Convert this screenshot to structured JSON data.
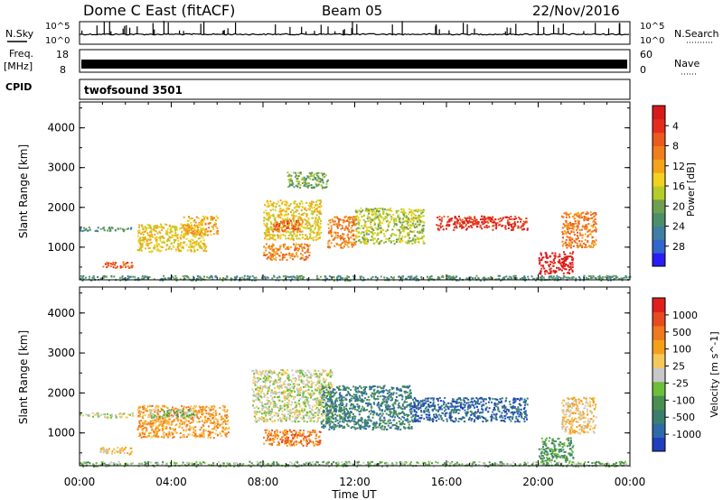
{
  "header": {
    "station": "Dome C East (fitACF)",
    "beam": "Beam 05",
    "date": "22/Nov/2016"
  },
  "sky_panel": {
    "left_label": "N.Sky",
    "left_ticks": [
      "10^5",
      "10^0"
    ],
    "right_label": "N.Search",
    "right_ticks": [
      "10^5",
      "10^0"
    ]
  },
  "freq_panel": {
    "left_label_1": "Freq.",
    "left_label_2": "[MHz]",
    "left_ticks": [
      "18",
      "8"
    ],
    "right_label": "Nave",
    "right_ticks": [
      "60",
      "0"
    ]
  },
  "cpid": {
    "label": "CPID",
    "value": "twofsound 3501"
  },
  "x_axis": {
    "title": "Time UT",
    "ticks": [
      "00:00",
      "04:00",
      "08:00",
      "12:00",
      "16:00",
      "20:00",
      "00:00"
    ]
  },
  "chart_data": [
    {
      "type": "heatmap",
      "title": "",
      "xlabel": "Time UT",
      "ylabel": "Slant Range [km]",
      "x_ticks": [
        "00:00",
        "04:00",
        "08:00",
        "12:00",
        "16:00",
        "20:00",
        "00:00"
      ],
      "y_ticks": [
        "1000",
        "2000",
        "3000",
        "4000"
      ],
      "x_range_hours": [
        0,
        24
      ],
      "y_range_km": [
        180,
        4650
      ],
      "colorbar": {
        "label": "Power [dB]",
        "ticks": [
          "4",
          "8",
          "12",
          "16",
          "20",
          "24",
          "28"
        ],
        "colors": [
          "#2a1cf5",
          "#3366cc",
          "#3f7fa6",
          "#4d8f6a",
          "#6fa050",
          "#b6cc2a",
          "#f2d21e",
          "#f5a31a",
          "#f07d1e",
          "#eb5a1e",
          "#e52d1e",
          "#d7191c"
        ]
      },
      "regions": [
        {
          "t0": 0.0,
          "t1": 2.3,
          "r0": 1420,
          "r1": 1520,
          "level": 3
        },
        {
          "t0": 0.8,
          "t1": 2.3,
          "r0": 500,
          "r1": 650,
          "level": 9
        },
        {
          "t0": 2.5,
          "t1": 5.5,
          "r0": 900,
          "r1": 1600,
          "level": 6
        },
        {
          "t0": 4.5,
          "t1": 6.0,
          "r0": 1300,
          "r1": 1800,
          "level": 7
        },
        {
          "t0": 8.0,
          "t1": 10.5,
          "r0": 1200,
          "r1": 2200,
          "level": 6
        },
        {
          "t0": 8.4,
          "t1": 9.6,
          "r0": 1400,
          "r1": 1700,
          "level": 9
        },
        {
          "t0": 8.0,
          "t1": 10.0,
          "r0": 700,
          "r1": 1100,
          "level": 8
        },
        {
          "t0": 9.0,
          "t1": 10.8,
          "r0": 2500,
          "r1": 2900,
          "level": 4
        },
        {
          "t0": 10.8,
          "t1": 12.0,
          "r0": 1000,
          "r1": 1800,
          "level": 8
        },
        {
          "t0": 12.0,
          "t1": 15.0,
          "r0": 1100,
          "r1": 2000,
          "level": 5
        },
        {
          "t0": 15.5,
          "t1": 19.5,
          "r0": 1450,
          "r1": 1800,
          "level": 10
        },
        {
          "t0": 20.0,
          "t1": 21.5,
          "r0": 350,
          "r1": 900,
          "level": 11
        },
        {
          "t0": 21.0,
          "t1": 22.5,
          "r0": 1000,
          "r1": 1900,
          "level": 8
        },
        {
          "t0": 0.0,
          "t1": 24.0,
          "r0": 180,
          "r1": 300,
          "level": 3
        }
      ]
    },
    {
      "type": "heatmap",
      "title": "",
      "xlabel": "Time UT",
      "ylabel": "Slant Range [km]",
      "x_ticks": [
        "00:00",
        "04:00",
        "08:00",
        "12:00",
        "16:00",
        "20:00",
        "00:00"
      ],
      "y_ticks": [
        "1000",
        "2000",
        "3000",
        "4000"
      ],
      "x_range_hours": [
        0,
        24
      ],
      "y_range_km": [
        180,
        4650
      ],
      "colorbar": {
        "label": "Velocity [m s^-1]",
        "ticks": [
          "1000",
          "500",
          "100",
          "25",
          "-25",
          "-100",
          "-500",
          "-1000"
        ],
        "colors": [
          "#1f3fbf",
          "#2e6aa8",
          "#3a7f6e",
          "#4a8f50",
          "#6cbf3a",
          "#c8c8c8",
          "#f5c85a",
          "#f5a01a",
          "#f07820",
          "#e84a1e",
          "#e01e1e"
        ]
      },
      "regions": [
        {
          "t0": 0.0,
          "t1": 2.3,
          "r0": 1400,
          "r1": 1520,
          "level": 5
        },
        {
          "t0": 0.8,
          "t1": 2.3,
          "r0": 480,
          "r1": 660,
          "level": 6
        },
        {
          "t0": 2.5,
          "t1": 6.5,
          "r0": 900,
          "r1": 1700,
          "level": 7
        },
        {
          "t0": 3.0,
          "t1": 5.0,
          "r0": 1400,
          "r1": 1600,
          "level": 4
        },
        {
          "t0": 7.5,
          "t1": 11.0,
          "r0": 1300,
          "r1": 2600,
          "level": 5
        },
        {
          "t0": 8.0,
          "t1": 10.5,
          "r0": 700,
          "r1": 1100,
          "level": 8
        },
        {
          "t0": 10.5,
          "t1": 14.5,
          "r0": 1100,
          "r1": 2200,
          "level": 2
        },
        {
          "t0": 14.5,
          "t1": 19.5,
          "r0": 1300,
          "r1": 1900,
          "level": 1
        },
        {
          "t0": 20.0,
          "t1": 21.5,
          "r0": 300,
          "r1": 900,
          "level": 3
        },
        {
          "t0": 21.0,
          "t1": 22.5,
          "r0": 1000,
          "r1": 1900,
          "level": 6
        },
        {
          "t0": 0.0,
          "t1": 24.0,
          "r0": 180,
          "r1": 300,
          "level": 4
        }
      ]
    }
  ]
}
